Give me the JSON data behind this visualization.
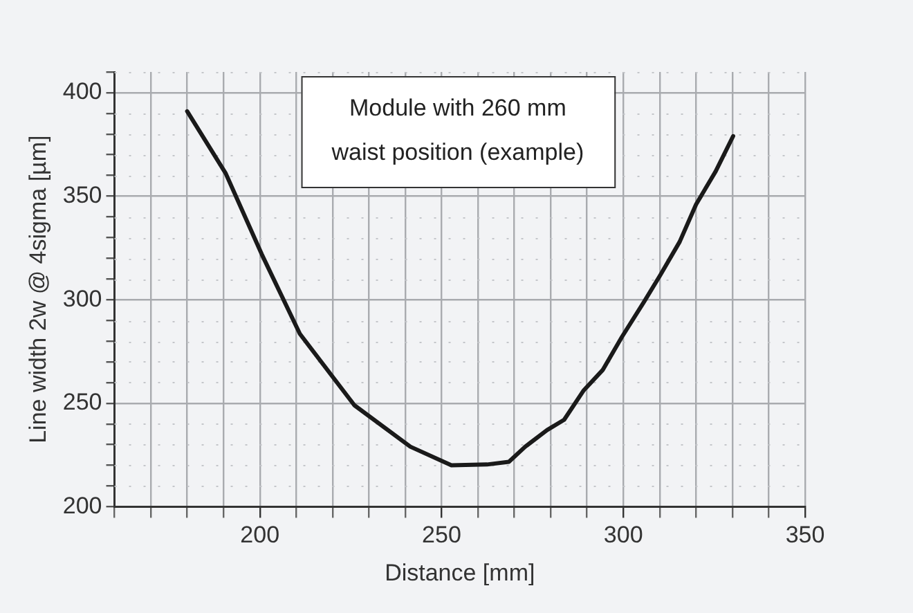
{
  "chart_data": {
    "type": "line",
    "xlabel": "Distance [mm]",
    "ylabel": "Line width 2w @ 4sigma [µm]",
    "annotations": [
      "Module with 260 mm\nwaist position (example)"
    ],
    "x": [
      180,
      190.6,
      200.5,
      211,
      226,
      241.4,
      252.7,
      262.5,
      268.5,
      273,
      279,
      283.7,
      289,
      294.3,
      299.6,
      305.7,
      310.2,
      315.5,
      320,
      325.4,
      330.2
    ],
    "series": [
      {
        "color": "#1a1a1a",
        "values": [
          391,
          361,
          322,
          283.5,
          249,
          229,
          220,
          220.4,
          221.7,
          229,
          237,
          242,
          256,
          266,
          282,
          299,
          312,
          328,
          346,
          362,
          379
        ]
      }
    ],
    "xlim": [
      160,
      350
    ],
    "xticks": [
      {
        "value": 160,
        "label": null
      },
      {
        "value": 170,
        "label": null
      },
      {
        "value": 180,
        "label": null
      },
      {
        "value": 190,
        "label": null
      },
      200,
      {
        "value": 210,
        "label": null
      },
      {
        "value": 220,
        "label": null
      },
      {
        "value": 230,
        "label": null
      },
      {
        "value": 240,
        "label": null
      },
      250,
      {
        "value": 260,
        "label": null
      },
      {
        "value": 270,
        "label": null
      },
      {
        "value": 280,
        "label": null
      },
      {
        "value": 290,
        "label": null
      },
      300,
      {
        "value": 310,
        "label": null
      },
      {
        "value": 320,
        "label": null
      },
      {
        "value": 330,
        "label": null
      },
      {
        "value": 340,
        "label": null
      },
      350
    ],
    "ylim": [
      200,
      410
    ],
    "yticks": [
      200,
      {
        "value": 210,
        "label": null
      },
      {
        "value": 220,
        "label": null
      },
      {
        "value": 230,
        "label": null
      },
      {
        "value": 240,
        "label": null
      },
      250,
      {
        "value": 260,
        "label": null
      },
      {
        "value": 270,
        "label": null
      },
      {
        "value": 280,
        "label": null
      },
      {
        "value": 290,
        "label": null
      },
      300,
      {
        "value": 310,
        "label": null
      },
      {
        "value": 320,
        "label": null
      },
      {
        "value": 330,
        "label": null
      },
      {
        "value": 340,
        "label": null
      },
      350,
      {
        "value": 360,
        "label": null
      },
      {
        "value": 370,
        "label": null
      },
      {
        "value": 380,
        "label": null
      },
      {
        "value": 390,
        "label": null
      },
      400,
      {
        "value": 410,
        "label": null
      }
    ],
    "grid": true,
    "legend": false,
    "marker": "none",
    "line_style": "solid"
  }
}
